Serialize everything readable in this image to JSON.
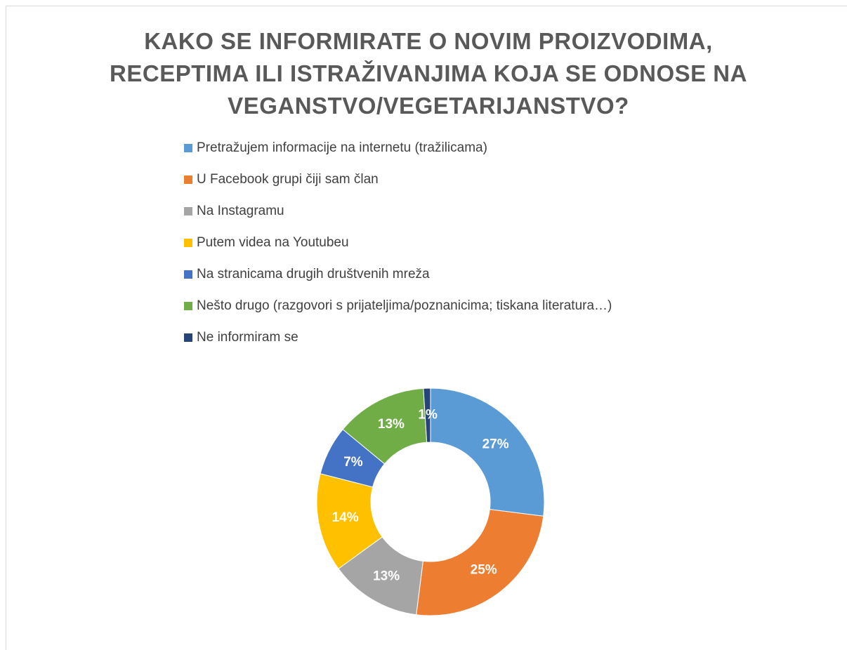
{
  "chart_data": {
    "type": "donut",
    "title": "KAKO SE INFORMIRATE O NOVIM PROIZVODIMA, RECEPTIMA ILI ISTRAŽIVANJIMA KOJA SE ODNOSE NA VEGANSTVO/VEGETARIJANSTVO?",
    "categories": [
      "Pretražujem informacije na internetu (tražilicama)",
      "U Facebook grupi čiji sam član",
      "Na Instagramu",
      "Putem videa na Youtubeu",
      "Na stranicama drugih društvenih mreža",
      "Nešto drugo (razgovori s prijateljima/poznanicima; tiskana literatura…)",
      "Ne informiram se"
    ],
    "values": [
      27,
      25,
      13,
      14,
      7,
      13,
      1
    ],
    "value_labels": [
      "27%",
      "25%",
      "13%",
      "14%",
      "7%",
      "13%",
      "1%"
    ],
    "colors": [
      "#5b9bd5",
      "#ed7d31",
      "#a5a5a5",
      "#ffc000",
      "#4472c4",
      "#70ad47",
      "#264478"
    ],
    "legend": "top"
  }
}
